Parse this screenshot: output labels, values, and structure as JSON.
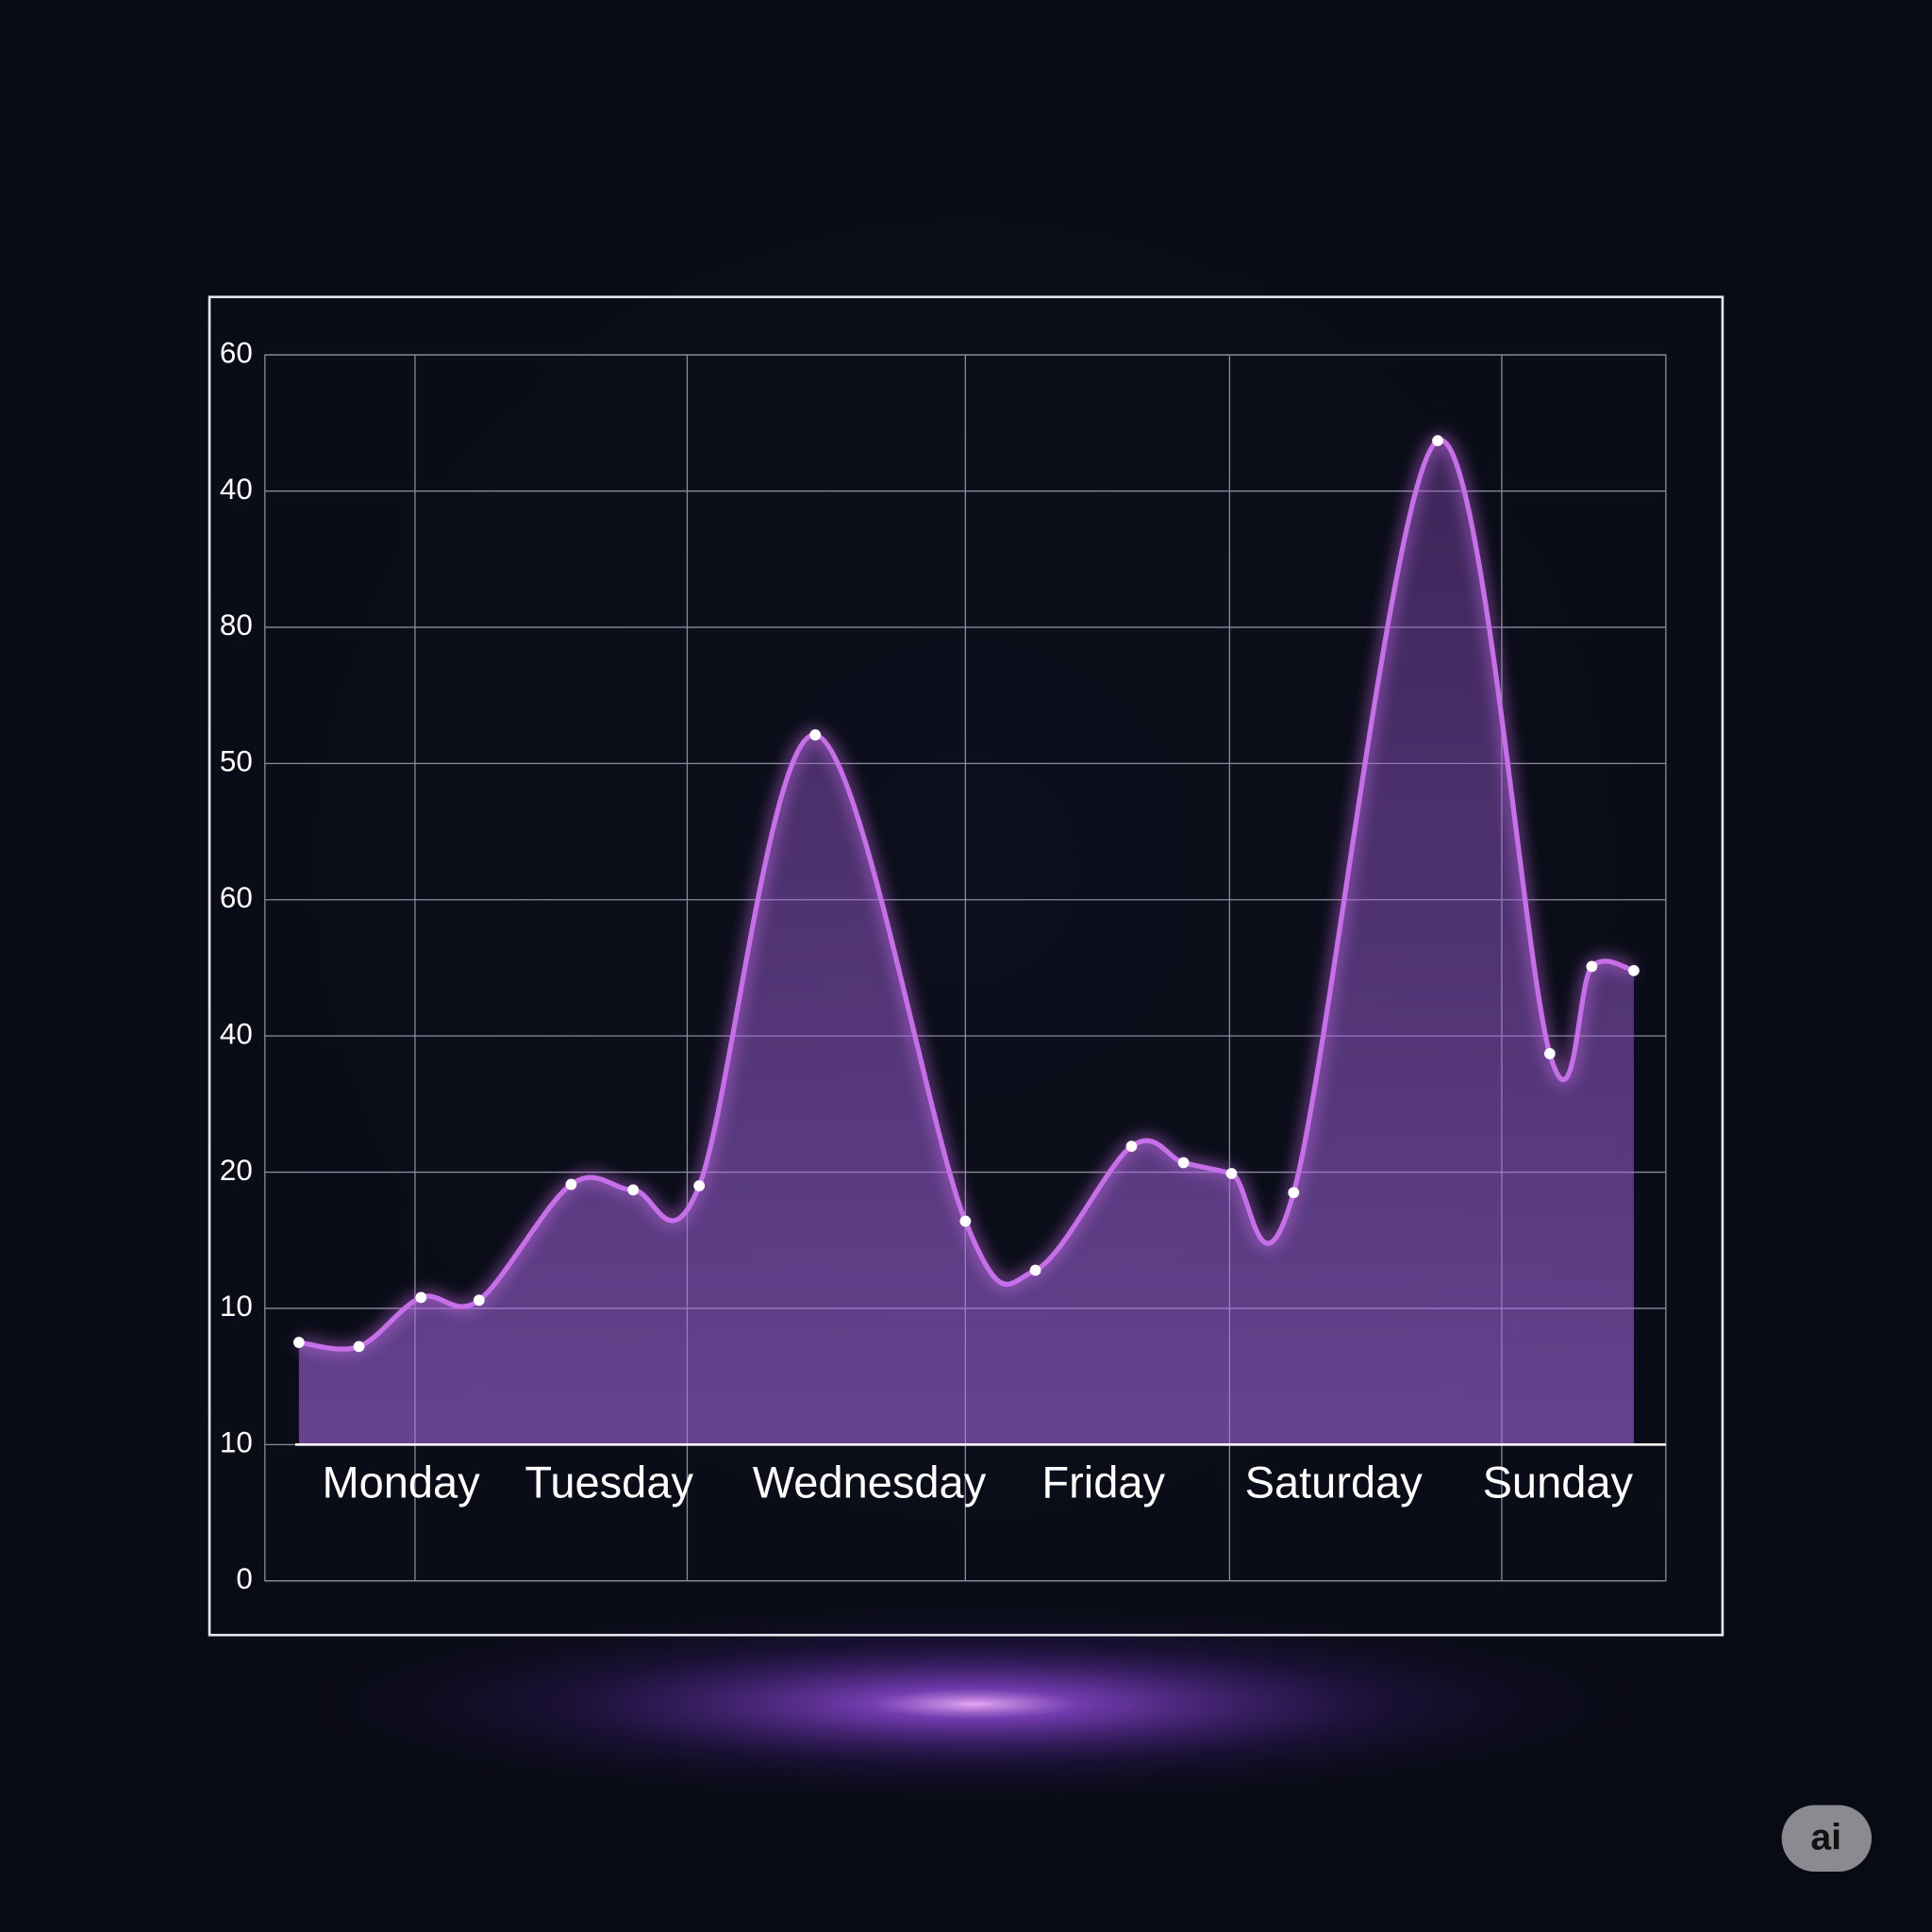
{
  "chart_data": {
    "type": "line",
    "x": [
      0.17,
      0.47,
      0.78,
      1.07,
      1.53,
      1.84,
      2.17,
      2.75,
      3.5,
      3.85,
      4.33,
      4.59,
      4.83,
      5.14,
      5.86,
      6.42,
      6.63,
      6.84
    ],
    "values": [
      1.75,
      1.72,
      2.08,
      2.06,
      2.91,
      2.87,
      2.9,
      6.21,
      2.64,
      2.28,
      3.19,
      3.07,
      2.99,
      2.85,
      8.37,
      3.87,
      4.51,
      4.48
    ],
    "color": "#c76ee9",
    "xlim": [
      0,
      7
    ],
    "xticks": [
      {
        "value": 0.68,
        "label": "Monday"
      },
      {
        "value": 1.72,
        "label": "Tuesday"
      },
      {
        "value": 3.02,
        "label": "Wednesday"
      },
      {
        "value": 4.19,
        "label": "Friday"
      },
      {
        "value": 5.34,
        "label": "Saturday"
      },
      {
        "value": 6.46,
        "label": "Sunday"
      }
    ],
    "xgrid": [
      0.75,
      2.11,
      3.5,
      4.82,
      6.18
    ],
    "ylim": [
      0,
      9
    ],
    "yticks": [
      0,
      {
        "value": 1,
        "label": "10"
      },
      {
        "value": 2,
        "label": "10"
      },
      {
        "value": 3,
        "label": "20"
      },
      {
        "value": 4,
        "label": "40"
      },
      {
        "value": 5,
        "label": "60"
      },
      {
        "value": 6,
        "label": "50"
      },
      {
        "value": 7,
        "label": "80"
      },
      {
        "value": 8,
        "label": "40"
      },
      {
        "value": 9,
        "label": "60"
      }
    ],
    "grid": true,
    "badge": "ai"
  }
}
